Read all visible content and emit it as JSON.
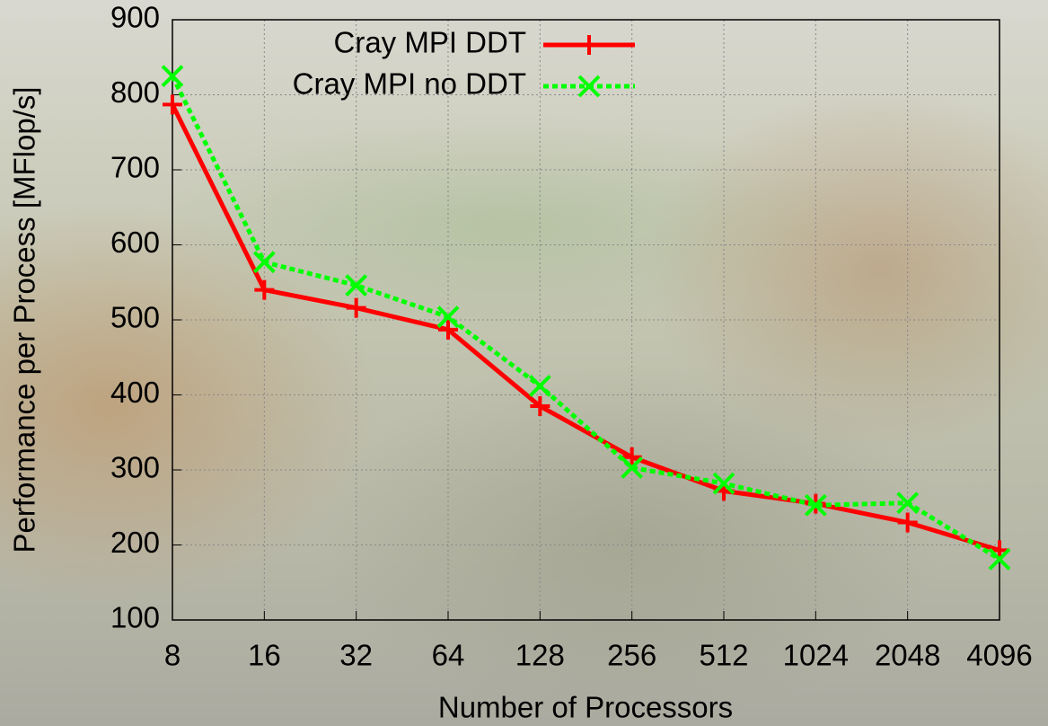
{
  "chart_data": {
    "type": "line",
    "x_label": "Number of Processors",
    "y_label": "Performance per Process [MFlop/s]",
    "categories": [
      "8",
      "16",
      "32",
      "64",
      "128",
      "256",
      "512",
      "1024",
      "2048",
      "4096"
    ],
    "series": [
      {
        "name": "Cray MPI DDT",
        "color": "#ff0000",
        "marker": "plus",
        "line_style": "solid",
        "values": [
          787,
          540,
          516,
          487,
          385,
          317,
          272,
          255,
          230,
          193
        ]
      },
      {
        "name": "Cray MPI no DDT",
        "color": "#00ff00",
        "marker": "cross",
        "line_style": "dashed",
        "values": [
          825,
          577,
          546,
          504,
          412,
          303,
          282,
          253,
          256,
          181
        ]
      }
    ],
    "ylim": [
      100,
      900
    ],
    "yticks": [
      100,
      200,
      300,
      400,
      500,
      600,
      700,
      800,
      900
    ],
    "grid": true,
    "legend": "top-center"
  }
}
